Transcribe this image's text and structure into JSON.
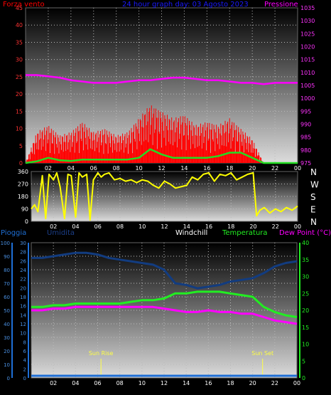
{
  "title": "24 hour graph day: 03 Agosto 2023",
  "colors": {
    "wind": "#ff0000",
    "gust_avg": "#22dd22",
    "pressure": "#ff00ff",
    "direction": "#ffff00",
    "rain": "#1e6fd6",
    "humidity": "#123c80",
    "temperature": "#22ee22",
    "dewpoint": "#ff00ff",
    "windchill": "#ffffff",
    "sun": "#ffff44"
  },
  "chart_data": [
    {
      "type": "line",
      "id": "wind-pressure",
      "labels": {
        "left": "Forza vento",
        "title": "24 hour graph day: 03 Agosto 2023",
        "right": "Pressione"
      },
      "x_ticks": [
        "02",
        "04",
        "06",
        "08",
        "10",
        "12",
        "14",
        "16",
        "18",
        "20",
        "22",
        "00"
      ],
      "y_left": {
        "ticks": [
          "0",
          "5",
          "10",
          "15",
          "20",
          "25",
          "30",
          "35",
          "40",
          "45"
        ],
        "range": [
          0,
          45
        ]
      },
      "y_right": {
        "ticks": [
          "975",
          "980",
          "985",
          "990",
          "995",
          "1000",
          "1005",
          "1010",
          "1015",
          "1020",
          "1025",
          "1030",
          "1035"
        ],
        "range": [
          975,
          1035
        ]
      },
      "x": [
        0,
        1,
        2,
        3,
        4,
        5,
        6,
        7,
        8,
        9,
        10,
        11,
        12,
        13,
        14,
        15,
        16,
        17,
        18,
        19,
        20,
        21,
        22,
        23,
        24
      ],
      "series": [
        {
          "role": "pressure",
          "axis": "right",
          "values": [
            1009,
            1009,
            1008.5,
            1008,
            1007,
            1006.5,
            1006,
            1006,
            1006,
            1006.5,
            1007,
            1007,
            1007.5,
            1008,
            1008,
            1007.5,
            1007,
            1007,
            1006.5,
            1006,
            1006,
            1005.5,
            1006,
            1006,
            1006
          ]
        },
        {
          "role": "wind_gust",
          "axis": "left",
          "values": [
            0,
            9,
            11,
            8,
            9,
            12,
            9,
            10,
            8,
            9,
            13,
            17,
            15,
            13,
            14,
            11,
            12,
            11,
            13,
            10,
            7,
            0,
            0,
            0,
            0
          ]
        },
        {
          "role": "wind_avg",
          "axis": "left",
          "values": [
            0,
            0.5,
            1.5,
            0.8,
            0.6,
            1,
            1,
            1,
            1,
            1,
            1.5,
            4,
            2.5,
            1.5,
            1.5,
            1.5,
            1.5,
            2,
            3,
            3,
            1.5,
            0,
            0,
            0,
            0
          ]
        }
      ]
    },
    {
      "type": "line",
      "id": "wind-direction",
      "x_ticks": [
        "02",
        "04",
        "06",
        "08",
        "10",
        "12",
        "14",
        "16",
        "18",
        "20",
        "22",
        "00"
      ],
      "y_left": {
        "ticks": [
          "0",
          "90",
          "180",
          "270",
          "360"
        ],
        "range": [
          0,
          360
        ]
      },
      "y_right_labels": [
        "N",
        "W",
        "S",
        "E",
        "N"
      ],
      "x": [
        0,
        0.3,
        0.6,
        1,
        1.3,
        1.6,
        2,
        2.3,
        2.6,
        3,
        3.3,
        3.6,
        4,
        4.3,
        4.6,
        5,
        5.3,
        5.6,
        6,
        6.3,
        6.6,
        7,
        7.5,
        8,
        8.5,
        9,
        9.5,
        10,
        10.5,
        11,
        11.5,
        12,
        12.5,
        13,
        13.5,
        14,
        14.5,
        15,
        15.5,
        16,
        16.5,
        17,
        17.5,
        18,
        18.5,
        19,
        19.5,
        20,
        20.3,
        20.6,
        21,
        21.5,
        22,
        22.5,
        23,
        23.5,
        24
      ],
      "series": [
        {
          "role": "direction",
          "values": [
            90,
            120,
            70,
            330,
            20,
            340,
            300,
            350,
            250,
            20,
            340,
            330,
            30,
            350,
            320,
            340,
            10,
            300,
            350,
            320,
            340,
            350,
            300,
            310,
            290,
            300,
            280,
            300,
            290,
            260,
            240,
            290,
            270,
            240,
            250,
            260,
            320,
            300,
            340,
            350,
            290,
            340,
            330,
            350,
            300,
            320,
            340,
            350,
            40,
            80,
            100,
            60,
            90,
            70,
            100,
            80,
            110
          ]
        }
      ]
    },
    {
      "type": "line",
      "id": "temp-humidity",
      "labels": {
        "rain": "Pioggia",
        "humidity": "Umidita",
        "windchill": "Windchill",
        "temperature": "Temperatura",
        "dewpoint": "Dew Point (°C)"
      },
      "x_ticks": [
        "02",
        "04",
        "06",
        "08",
        "10",
        "12",
        "14",
        "16",
        "18",
        "20",
        "22",
        "00"
      ],
      "y_rain": {
        "ticks": [
          "0",
          "10",
          "20",
          "30",
          "40",
          "50",
          "60",
          "70",
          "80",
          "90",
          "100"
        ],
        "range": [
          0,
          100
        ]
      },
      "y_humidity": {
        "ticks": [
          "0",
          "2",
          "4",
          "6",
          "8",
          "10",
          "12",
          "14",
          "16",
          "18",
          "20",
          "22",
          "24",
          "26",
          "28",
          "30"
        ],
        "range": [
          0,
          30
        ]
      },
      "y_right": {
        "ticks": [
          "0",
          "5",
          "10",
          "15",
          "20",
          "25",
          "30",
          "35",
          "40"
        ],
        "range": [
          0,
          40
        ]
      },
      "annotations": [
        {
          "label": "Sun Rise",
          "x": 6.3
        },
        {
          "label": "Sun Set",
          "x": 20.9
        }
      ],
      "x": [
        0,
        1,
        2,
        3,
        4,
        5,
        6,
        7,
        8,
        9,
        10,
        11,
        12,
        13,
        14,
        15,
        16,
        17,
        18,
        19,
        20,
        21,
        22,
        23,
        24
      ],
      "series": [
        {
          "role": "humidity",
          "axis": "right",
          "values": [
            35.5,
            35.5,
            36,
            36.5,
            37,
            37,
            36.5,
            35.5,
            35,
            34.5,
            34,
            33.5,
            32,
            28,
            27.5,
            26.5,
            27,
            27.5,
            28.5,
            29,
            29.5,
            31,
            33,
            34,
            34.5
          ]
        },
        {
          "role": "temperature",
          "axis": "right",
          "values": [
            21,
            21,
            21.5,
            21.5,
            22,
            22,
            22,
            22,
            22,
            22.5,
            23,
            23,
            23.5,
            25,
            25,
            25.5,
            25.5,
            25.5,
            25,
            24.5,
            24,
            21,
            19.5,
            18.5,
            18
          ]
        },
        {
          "role": "dewpoint",
          "axis": "right",
          "values": [
            20,
            20,
            20.5,
            20.5,
            21,
            21,
            21,
            21,
            21,
            21,
            21,
            21,
            20.5,
            20,
            19.5,
            19.5,
            20,
            19.5,
            19.5,
            19,
            19,
            18,
            17,
            16.5,
            16
          ]
        },
        {
          "role": "rain",
          "axis": "left",
          "values": [
            0,
            0,
            0,
            0,
            0,
            0,
            0,
            0,
            0,
            0,
            0,
            0,
            0,
            0,
            0,
            0,
            0,
            0,
            0,
            0,
            0,
            0,
            0,
            0,
            0
          ]
        }
      ]
    }
  ]
}
